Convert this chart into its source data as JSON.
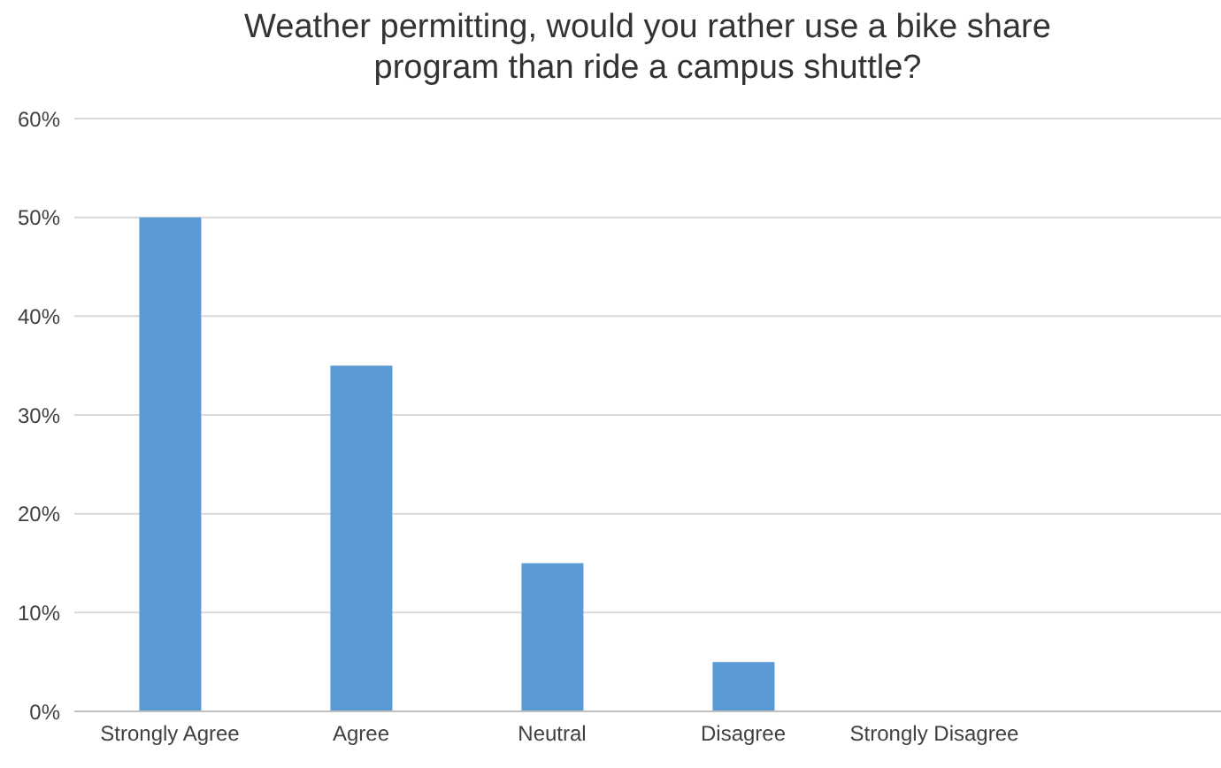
{
  "chart_data": {
    "type": "bar",
    "title": "Weather permitting, would you rather use a bike share program than ride a campus shuttle?",
    "categories": [
      "Strongly Agree",
      "Agree",
      "Neutral",
      "Disagree",
      "Strongly Disagree",
      null
    ],
    "values": [
      50,
      35,
      15,
      5,
      0,
      null
    ],
    "color": "#5b9bd5",
    "ylim": [
      0,
      60
    ],
    "yticks": [
      {
        "value": 0,
        "label": "0%"
      },
      {
        "value": 10,
        "label": "10%"
      },
      {
        "value": 20,
        "label": "20%"
      },
      {
        "value": 30,
        "label": "30%"
      },
      {
        "value": 40,
        "label": "40%"
      },
      {
        "value": 50,
        "label": "50%"
      },
      {
        "value": 60,
        "label": "60%"
      }
    ],
    "grid": "y"
  }
}
